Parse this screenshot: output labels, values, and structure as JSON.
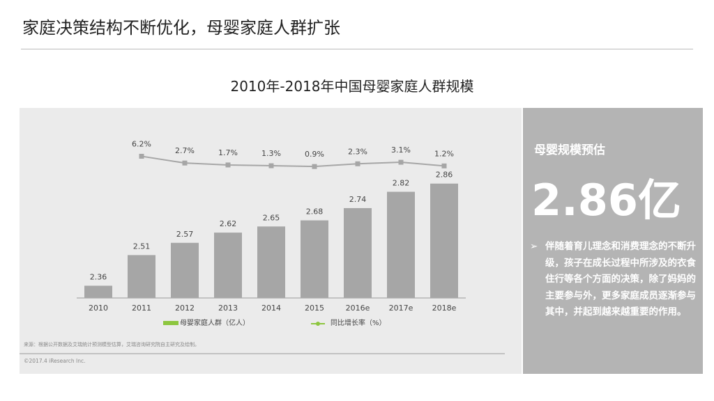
{
  "header": {
    "title": "家庭决策结构不断优化，母婴家庭人群扩张"
  },
  "chart_data": {
    "type": "bar",
    "title": "2010年-2018年中国母婴家庭人群规模",
    "categories": [
      "2010",
      "2011",
      "2012",
      "2013",
      "2014",
      "2015",
      "2016e",
      "2017e",
      "2018e"
    ],
    "series": [
      {
        "name": "母婴家庭人群（亿人）",
        "color": "#a6a6a6",
        "legend_color": "#8dc63f",
        "values": [
          2.36,
          2.51,
          2.57,
          2.62,
          2.65,
          2.68,
          2.74,
          2.82,
          2.86
        ]
      },
      {
        "name": "同比增长率（%）",
        "type": "line",
        "axis": "y2",
        "color": "#a6a6a6",
        "legend_color": "#8dc63f",
        "values": [
          null,
          6.2,
          2.7,
          1.7,
          1.3,
          0.9,
          2.3,
          3.1,
          1.2
        ],
        "value_labels": [
          null,
          "6.2%",
          "2.7%",
          "1.7%",
          "1.3%",
          "0.9%",
          "2.3%",
          "3.1%",
          "1.2%"
        ]
      }
    ],
    "ylim": [
      2.3,
      2.9
    ],
    "y2lim": [
      -3,
      15
    ],
    "source": "来源：根据公开数据及艾瑞统计预测模型估算，艾瑞咨询研究院自主研究及绘制。",
    "copyright": "©2017.4 iResearch Inc."
  },
  "sidebar": {
    "heading": "母婴规模预估",
    "highlight": "2.86亿",
    "bullet": "伴随着育儿理念和消费理念的不断升级，孩子在成长过程中所涉及的衣食住行等各个方面的决策，除了妈妈的主要参与外，更多家庭成员逐渐参与其中，并起到越来越重要的作用。"
  }
}
